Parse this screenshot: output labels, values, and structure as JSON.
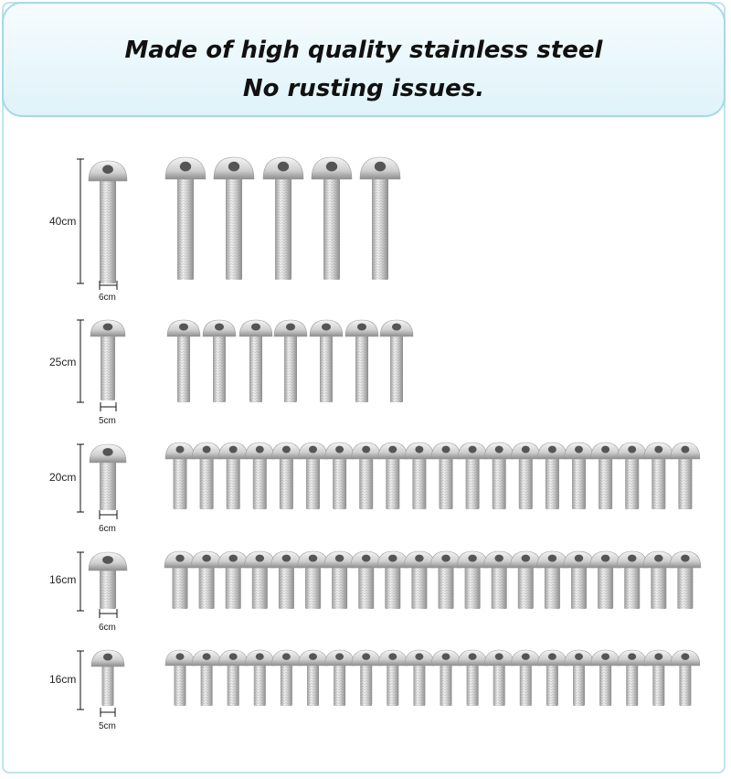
{
  "banner": {
    "line1": "Made of high quality stainless steel",
    "line2": "No rusting issues."
  },
  "rows": [
    {
      "length_label": "40cm",
      "diameter_label": "6cm",
      "count": 5
    },
    {
      "length_label": "25cm",
      "diameter_label": "5cm",
      "count": 7
    },
    {
      "length_label": "20cm",
      "diameter_label": "6cm",
      "count": 20
    },
    {
      "length_label": "16cm",
      "diameter_label": "6cm",
      "count": 20
    },
    {
      "length_label": "16cm",
      "diameter_label": "5cm",
      "count": 20
    }
  ],
  "colors": {
    "banner_border": "#a7d8e7",
    "frame": "#bfe4ee",
    "steel": "#c8c8c8"
  }
}
